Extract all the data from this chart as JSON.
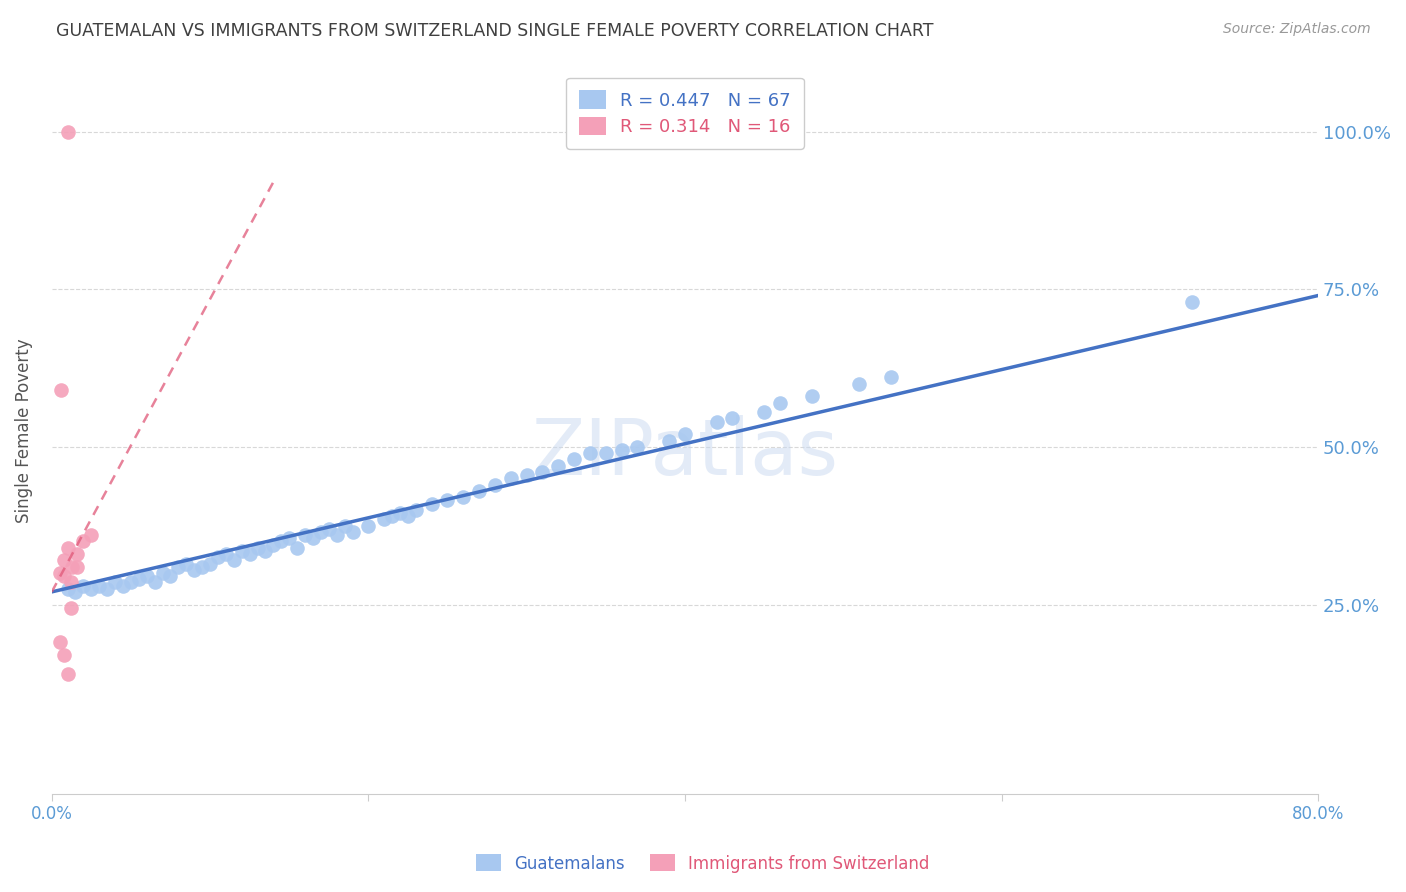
{
  "title": "GUATEMALAN VS IMMIGRANTS FROM SWITZERLAND SINGLE FEMALE POVERTY CORRELATION CHART",
  "source": "Source: ZipAtlas.com",
  "ylabel": "Single Female Poverty",
  "xlim": [
    0.0,
    0.8
  ],
  "ylim": [
    -0.05,
    1.1
  ],
  "yticks": [
    0.0,
    0.25,
    0.5,
    0.75,
    1.0
  ],
  "ytick_labels": [
    "",
    "25.0%",
    "50.0%",
    "75.0%",
    "100.0%"
  ],
  "xticks": [
    0.0,
    0.2,
    0.4,
    0.6,
    0.8
  ],
  "xtick_labels": [
    "0.0%",
    "",
    "",
    "",
    "80.0%"
  ],
  "blue_R": 0.447,
  "blue_N": 67,
  "pink_R": 0.314,
  "pink_N": 16,
  "blue_color": "#a8c8f0",
  "pink_color": "#f4a0b8",
  "blue_line_color": "#4472c4",
  "pink_line_color": "#e05878",
  "watermark": "ZIPatlas",
  "blue_scatter_x": [
    0.01,
    0.015,
    0.02,
    0.025,
    0.03,
    0.035,
    0.04,
    0.045,
    0.05,
    0.055,
    0.06,
    0.065,
    0.07,
    0.075,
    0.08,
    0.085,
    0.09,
    0.095,
    0.1,
    0.105,
    0.11,
    0.115,
    0.12,
    0.125,
    0.13,
    0.135,
    0.14,
    0.145,
    0.15,
    0.155,
    0.16,
    0.165,
    0.17,
    0.175,
    0.18,
    0.185,
    0.19,
    0.2,
    0.21,
    0.215,
    0.22,
    0.225,
    0.23,
    0.24,
    0.25,
    0.26,
    0.27,
    0.28,
    0.29,
    0.3,
    0.31,
    0.32,
    0.33,
    0.34,
    0.35,
    0.36,
    0.37,
    0.39,
    0.4,
    0.42,
    0.43,
    0.45,
    0.46,
    0.48,
    0.51,
    0.53,
    0.72
  ],
  "blue_scatter_y": [
    0.275,
    0.27,
    0.28,
    0.275,
    0.28,
    0.275,
    0.285,
    0.28,
    0.285,
    0.29,
    0.295,
    0.285,
    0.3,
    0.295,
    0.31,
    0.315,
    0.305,
    0.31,
    0.315,
    0.325,
    0.33,
    0.32,
    0.335,
    0.33,
    0.34,
    0.335,
    0.345,
    0.35,
    0.355,
    0.34,
    0.36,
    0.355,
    0.365,
    0.37,
    0.36,
    0.375,
    0.365,
    0.375,
    0.385,
    0.39,
    0.395,
    0.39,
    0.4,
    0.41,
    0.415,
    0.42,
    0.43,
    0.44,
    0.45,
    0.455,
    0.46,
    0.47,
    0.48,
    0.49,
    0.49,
    0.495,
    0.5,
    0.51,
    0.52,
    0.54,
    0.545,
    0.555,
    0.57,
    0.58,
    0.6,
    0.61,
    0.73
  ],
  "pink_scatter_x": [
    0.005,
    0.008,
    0.01,
    0.013,
    0.016,
    0.02,
    0.025,
    0.008,
    0.012,
    0.016,
    0.005,
    0.008,
    0.01,
    0.012,
    0.006,
    0.01
  ],
  "pink_scatter_y": [
    0.3,
    0.32,
    0.34,
    0.31,
    0.33,
    0.35,
    0.36,
    0.295,
    0.285,
    0.31,
    0.19,
    0.17,
    0.14,
    0.245,
    0.59,
    1.0
  ],
  "blue_trend_x": [
    0.0,
    0.8
  ],
  "blue_trend_y": [
    0.27,
    0.74
  ],
  "pink_trend_x": [
    0.0,
    0.14
  ],
  "pink_trend_y": [
    0.27,
    0.92
  ],
  "background_color": "#ffffff",
  "grid_color": "#d8d8d8",
  "title_color": "#404040",
  "axis_color": "#5b9bd5",
  "right_ylabel_color": "#5b9bd5"
}
